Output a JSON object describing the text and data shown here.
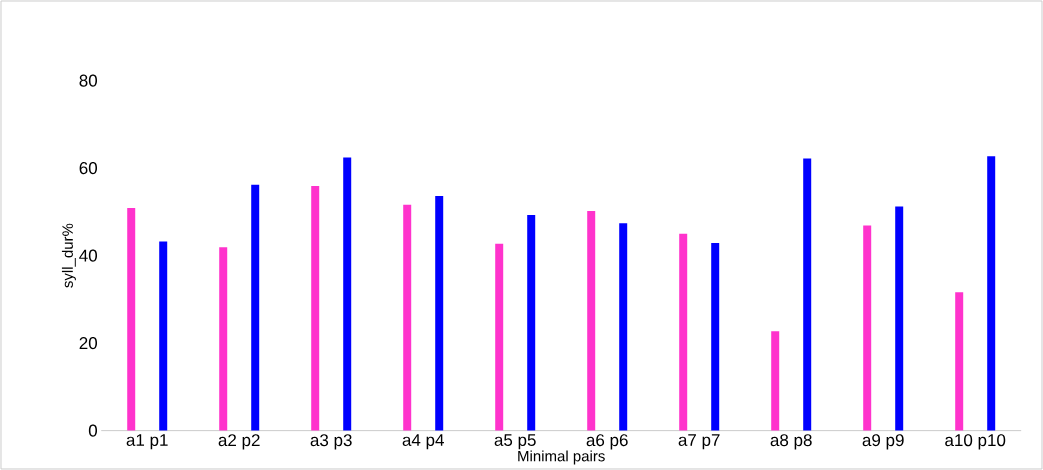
{
  "chart_data": {
    "type": "bar",
    "xlabel": "Minimal pairs",
    "ylabel": "syll_dur%",
    "categories": [
      "a1 p1",
      "a2 p2",
      "a3 p3",
      "a4 p4",
      "a5 p5",
      "a6 p6",
      "a7 p7",
      "a8 p8",
      "a9 p9",
      "a10 p10"
    ],
    "series": [
      {
        "color": "#ff33cc",
        "values": [
          50.9,
          41.9,
          55.9,
          51.6,
          42.7,
          50.2,
          45.0,
          22.7,
          46.9,
          31.6
        ]
      },
      {
        "color": "#0000ff",
        "values": [
          43.2,
          56.2,
          62.4,
          53.6,
          49.3,
          47.4,
          42.9,
          62.2,
          51.2,
          62.7
        ]
      }
    ],
    "ylim": [
      0,
      80
    ],
    "yticks": [
      0,
      20,
      40,
      60,
      80
    ]
  }
}
